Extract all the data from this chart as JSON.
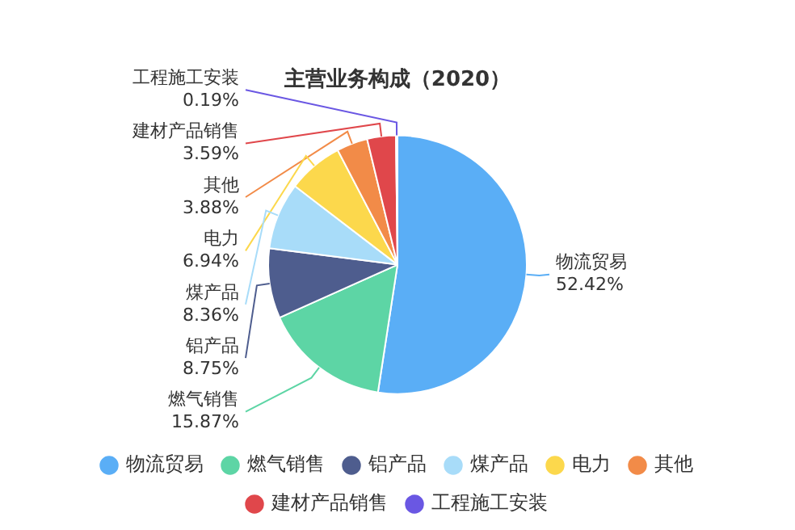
{
  "chart_data": {
    "type": "pie",
    "title": "主营业务构成（2020）",
    "categories": [
      "物流贸易",
      "燃气销售",
      "铝产品",
      "煤产品",
      "电力",
      "其他",
      "建材产品销售",
      "工程施工安装"
    ],
    "values": [
      52.42,
      15.87,
      8.75,
      8.36,
      6.94,
      3.88,
      3.59,
      0.19
    ],
    "value_labels": [
      "52.42%",
      "15.87%",
      "8.75%",
      "8.36%",
      "6.94%",
      "3.88%",
      "3.59%",
      "0.19%"
    ],
    "colors": [
      "#5aaef6",
      "#5dd5a5",
      "#4e5d8e",
      "#a8dcf9",
      "#fcd84c",
      "#f28b48",
      "#e0474b",
      "#6a57e3"
    ],
    "legend": "bottom"
  }
}
